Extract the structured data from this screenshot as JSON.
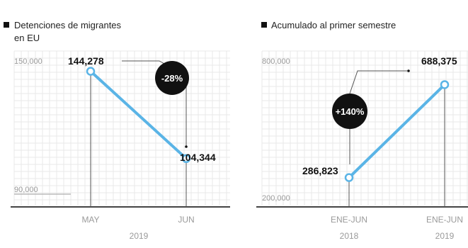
{
  "colors": {
    "line": "#5ab4e6",
    "dark": "#111111",
    "tick_text": "#9a9a9a",
    "guide": "#555555",
    "axis": "#444444",
    "grid": "#e8e8e8"
  },
  "chart_data": [
    {
      "type": "line",
      "title": "Detenciones de migrantes en EU",
      "title_lines": [
        "Detenciones de migrantes",
        "en EU"
      ],
      "categories": [
        "MAY",
        "JUN"
      ],
      "values": [
        144278,
        104344
      ],
      "value_labels": [
        "144,278",
        "104,344"
      ],
      "ylim": [
        90000,
        150000
      ],
      "yticks": [
        "150,000",
        "90,000"
      ],
      "xlabel": "2019",
      "change_badge": "-28%",
      "grid": true
    },
    {
      "type": "line",
      "title": "Acumulado al primer semestre",
      "title_lines": [
        "Acumulado al primer semestre"
      ],
      "categories": [
        "ENE-JUN",
        "ENE-JUN"
      ],
      "x_years": [
        "2018",
        "2019"
      ],
      "values": [
        286823,
        688375
      ],
      "value_labels": [
        "286,823",
        "688,375"
      ],
      "ylim": [
        200000,
        800000
      ],
      "yticks": [
        "800,000",
        "200,000"
      ],
      "change_badge": "+140%",
      "grid": true
    }
  ]
}
